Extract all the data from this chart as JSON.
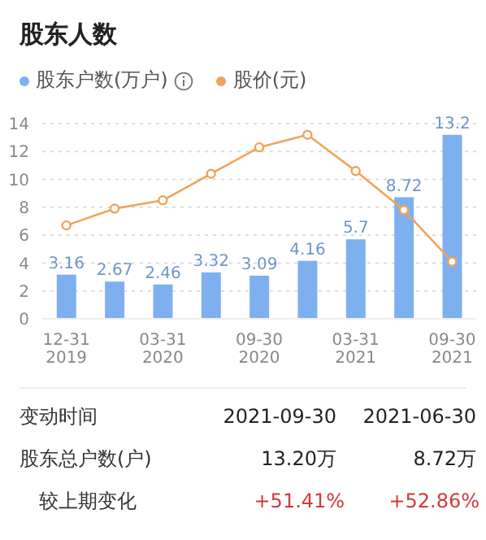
{
  "chart_data": {
    "type": "bar",
    "title": "股东人数",
    "categories": [
      "12-31\n2019",
      null,
      "03-31\n2020",
      null,
      "09-30\n2020",
      null,
      "03-31\n2021",
      null,
      "09-30\n2021"
    ],
    "series": [
      {
        "name": "股东户数(万户)",
        "color": "#7eb0f0",
        "values": [
          3.16,
          2.67,
          2.46,
          3.32,
          3.09,
          4.16,
          5.7,
          8.72,
          13.2
        ],
        "value_labels": [
          "3.16",
          "2.67",
          "2.46",
          "3.32",
          "3.09",
          "4.16",
          "5.7",
          "8.72",
          "13.2"
        ]
      },
      {
        "name": "股价(元)",
        "type": "line",
        "color": "#f0a35a",
        "values": [
          6.7,
          7.9,
          8.5,
          10.4,
          12.3,
          13.2,
          10.6,
          7.8,
          4.1
        ]
      }
    ],
    "ylim": [
      0,
      14
    ],
    "yticks": [
      0,
      2,
      4,
      6,
      8,
      10,
      12,
      14
    ],
    "grid": "y",
    "legend": "top left",
    "marker": "circle",
    "line_style": "solid",
    "annotations": [
      "变动时间",
      "2021-09-30",
      "2021-06-30",
      "股东总户数(户)",
      "13.20万",
      "8.72万",
      "较上期变化",
      "+51.41%",
      "+52.86%"
    ]
  }
}
